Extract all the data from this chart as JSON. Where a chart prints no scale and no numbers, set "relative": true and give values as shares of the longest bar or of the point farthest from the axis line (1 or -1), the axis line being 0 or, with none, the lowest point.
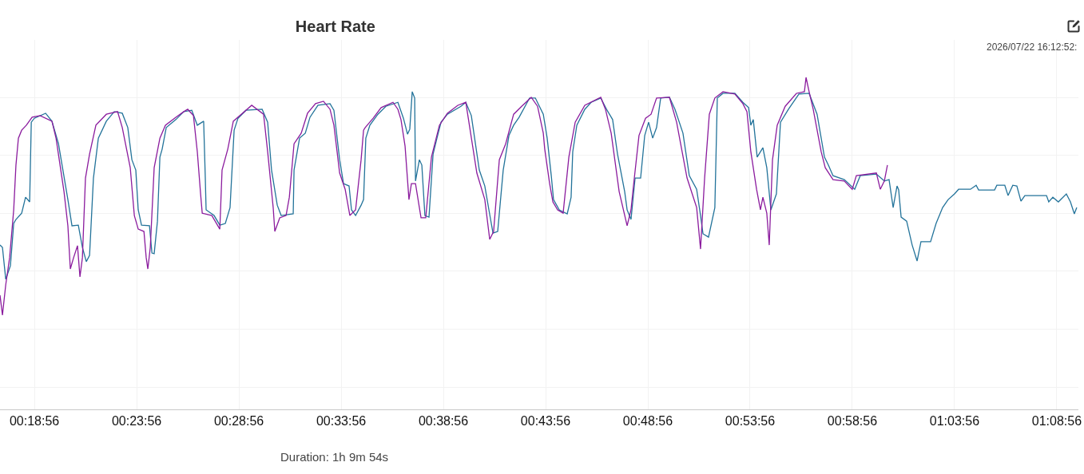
{
  "chart_data": {
    "type": "line",
    "title": "Heart Rate",
    "xlabel": "Duration: 1h 9m 54s",
    "annotations": [
      "2026/07/22 16:12:52:"
    ],
    "relative": true,
    "grid": true,
    "xlim": [
      17.25,
      69.99
    ],
    "xticks": [
      {
        "value": 18.933,
        "label": "00:18:56"
      },
      {
        "value": 23.933,
        "label": "00:23:56"
      },
      {
        "value": 28.933,
        "label": "00:28:56"
      },
      {
        "value": 33.933,
        "label": "00:33:56"
      },
      {
        "value": 38.933,
        "label": "00:38:56"
      },
      {
        "value": 43.933,
        "label": "00:43:56"
      },
      {
        "value": 48.933,
        "label": "00:48:56"
      },
      {
        "value": 53.933,
        "label": "00:53:56"
      },
      {
        "value": 58.933,
        "label": "00:58:56"
      },
      {
        "value": 63.933,
        "label": "01:03:56"
      },
      {
        "value": 68.933,
        "label": "01:08:56"
      }
    ],
    "series": [
      {
        "color": "#23739a",
        "x": [
          17.25,
          17.37,
          17.53,
          17.76,
          17.92,
          18.03,
          18.31,
          18.5,
          18.7,
          18.78,
          18.93,
          19.48,
          19.79,
          20.11,
          20.57,
          20.77,
          21.08,
          21.28,
          21.47,
          21.63,
          21.82,
          22.06,
          22.45,
          22.84,
          23.23,
          23.5,
          23.7,
          23.89,
          24.01,
          24.17,
          24.56,
          24.68,
          24.79,
          24.95,
          25.07,
          25.18,
          25.38,
          25.85,
          26.24,
          26.63,
          26.9,
          27.21,
          27.29,
          27.33,
          27.72,
          28.0,
          28.27,
          28.5,
          28.7,
          28.89,
          29.28,
          30.07,
          30.34,
          30.53,
          30.81,
          31.0,
          31.59,
          31.63,
          31.9,
          32.18,
          32.41,
          32.8,
          33.39,
          33.58,
          33.86,
          34.05,
          34.32,
          34.44,
          34.64,
          34.91,
          35.03,
          35.14,
          35.34,
          35.73,
          36.12,
          36.71,
          36.98,
          37.18,
          37.29,
          37.41,
          37.53,
          37.57,
          37.76,
          37.88,
          38.03,
          38.23,
          38.43,
          38.62,
          38.82,
          39.13,
          39.79,
          40.03,
          40.3,
          40.69,
          40.96,
          41.16,
          41.36,
          41.59,
          41.86,
          42.14,
          42.37,
          42.64,
          43.15,
          43.43,
          43.82,
          44.01,
          44.21,
          44.32,
          44.6,
          44.99,
          45.18,
          45.26,
          45.46,
          45.85,
          46.16,
          46.63,
          46.94,
          47.21,
          47.45,
          47.8,
          47.92,
          48.11,
          48.31,
          48.58,
          48.78,
          48.97,
          49.17,
          49.36,
          49.56,
          49.99,
          50.26,
          50.65,
          50.96,
          51.32,
          51.51,
          51.63,
          51.9,
          52.21,
          52.33,
          52.61,
          53.19,
          53.58,
          53.86,
          53.97,
          54.09,
          54.28,
          54.56,
          54.75,
          54.95,
          55.22,
          55.42,
          55.81,
          56.32,
          56.82,
          57.21,
          57.57,
          57.76,
          57.99,
          58.54,
          59.05,
          59.32,
          60.11,
          60.5,
          60.73,
          60.93,
          61.12,
          61.2,
          61.32,
          61.59,
          61.86,
          62.1,
          62.29,
          62.76,
          63.03,
          63.35,
          63.62,
          63.93,
          64.13,
          64.71,
          64.99,
          65.11,
          65.89,
          66.0,
          66.39,
          66.55,
          66.78,
          66.98,
          67.18,
          67.37,
          68.43,
          68.54,
          68.74,
          69.01,
          69.4,
          69.6,
          69.79,
          69.91
        ],
        "values": [
          0.495,
          0.488,
          0.392,
          0.433,
          0.56,
          0.572,
          0.591,
          0.639,
          0.625,
          0.865,
          0.877,
          0.892,
          0.868,
          0.8,
          0.632,
          0.553,
          0.555,
          0.488,
          0.445,
          0.464,
          0.697,
          0.817,
          0.868,
          0.897,
          0.892,
          0.849,
          0.752,
          0.721,
          0.601,
          0.555,
          0.553,
          0.471,
          0.469,
          0.567,
          0.76,
          0.784,
          0.849,
          0.873,
          0.897,
          0.901,
          0.856,
          0.868,
          0.697,
          0.601,
          0.584,
          0.555,
          0.56,
          0.608,
          0.841,
          0.877,
          0.901,
          0.904,
          0.865,
          0.721,
          0.615,
          0.584,
          0.589,
          0.721,
          0.817,
          0.832,
          0.88,
          0.916,
          0.921,
          0.901,
          0.752,
          0.68,
          0.673,
          0.601,
          0.584,
          0.615,
          0.632,
          0.817,
          0.856,
          0.889,
          0.913,
          0.925,
          0.877,
          0.829,
          0.844,
          0.957,
          0.938,
          0.688,
          0.752,
          0.736,
          0.584,
          0.579,
          0.769,
          0.817,
          0.865,
          0.889,
          0.913,
          0.925,
          0.885,
          0.721,
          0.673,
          0.601,
          0.531,
          0.536,
          0.721,
          0.825,
          0.856,
          0.88,
          0.938,
          0.938,
          0.889,
          0.817,
          0.704,
          0.632,
          0.601,
          0.589,
          0.639,
          0.776,
          0.856,
          0.904,
          0.925,
          0.938,
          0.901,
          0.873,
          0.769,
          0.656,
          0.601,
          0.572,
          0.697,
          0.697,
          0.825,
          0.865,
          0.817,
          0.849,
          0.938,
          0.94,
          0.904,
          0.832,
          0.704,
          0.663,
          0.584,
          0.529,
          0.519,
          0.608,
          0.938,
          0.952,
          0.952,
          0.925,
          0.909,
          0.856,
          0.873,
          0.76,
          0.788,
          0.728,
          0.601,
          0.649,
          0.865,
          0.904,
          0.95,
          0.952,
          0.889,
          0.76,
          0.736,
          0.704,
          0.692,
          0.663,
          0.704,
          0.709,
          0.688,
          0.692,
          0.608,
          0.673,
          0.661,
          0.579,
          0.567,
          0.495,
          0.447,
          0.505,
          0.505,
          0.56,
          0.608,
          0.632,
          0.649,
          0.663,
          0.663,
          0.675,
          0.661,
          0.661,
          0.675,
          0.675,
          0.644,
          0.675,
          0.673,
          0.627,
          0.644,
          0.644,
          0.625,
          0.639,
          0.625,
          0.649,
          0.625,
          0.589,
          0.608
        ]
      },
      {
        "color": "#8b1c9e",
        "x": [
          17.25,
          17.37,
          17.53,
          17.72,
          17.92,
          18.03,
          18.15,
          18.31,
          18.54,
          18.82,
          19.21,
          19.79,
          19.99,
          20.38,
          20.57,
          20.69,
          20.85,
          21.04,
          21.16,
          21.28,
          21.43,
          21.63,
          21.94,
          22.45,
          23.0,
          23.23,
          23.62,
          23.82,
          24.01,
          24.29,
          24.4,
          24.48,
          24.6,
          24.79,
          25.07,
          25.34,
          25.85,
          26.24,
          26.43,
          26.71,
          26.9,
          27.06,
          27.14,
          27.61,
          28.0,
          28.11,
          28.39,
          28.66,
          29.05,
          29.56,
          30.14,
          30.34,
          30.61,
          30.69,
          30.93,
          31.24,
          31.4,
          31.63,
          31.98,
          32.29,
          32.68,
          33.07,
          33.39,
          33.58,
          33.86,
          34.13,
          34.36,
          34.64,
          34.91,
          35.03,
          35.11,
          35.5,
          35.89,
          36.47,
          36.71,
          36.86,
          37.06,
          37.25,
          37.37,
          37.57,
          37.84,
          38.07,
          38.35,
          38.74,
          39.13,
          39.64,
          40.03,
          40.57,
          40.96,
          41.2,
          41.39,
          41.67,
          41.98,
          42.37,
          42.76,
          43.23,
          43.54,
          43.82,
          43.89,
          44.13,
          44.29,
          44.52,
          44.79,
          45.07,
          45.38,
          45.85,
          46.63,
          46.86,
          47.14,
          47.53,
          47.92,
          48.11,
          48.23,
          48.5,
          48.82,
          49.09,
          49.36,
          49.99,
          50.34,
          50.85,
          51.32,
          51.51,
          51.71,
          51.94,
          52.21,
          52.61,
          53.19,
          53.58,
          53.78,
          53.97,
          54.25,
          54.44,
          54.56,
          54.75,
          54.87,
          55.03,
          55.26,
          55.65,
          56.2,
          56.59,
          56.67,
          56.82,
          57.02,
          57.41,
          57.61,
          57.99,
          58.54,
          58.93,
          59.13,
          60.11,
          60.3,
          60.5,
          60.65
        ],
        "values": [
          0.344,
          0.284,
          0.375,
          0.457,
          0.601,
          0.736,
          0.817,
          0.841,
          0.856,
          0.88,
          0.885,
          0.868,
          0.817,
          0.656,
          0.553,
          0.423,
          0.457,
          0.493,
          0.399,
          0.457,
          0.697,
          0.769,
          0.856,
          0.889,
          0.897,
          0.849,
          0.728,
          0.584,
          0.543,
          0.536,
          0.457,
          0.423,
          0.488,
          0.728,
          0.817,
          0.856,
          0.88,
          0.897,
          0.904,
          0.885,
          0.776,
          0.649,
          0.591,
          0.584,
          0.543,
          0.721,
          0.784,
          0.868,
          0.889,
          0.916,
          0.889,
          0.776,
          0.608,
          0.536,
          0.577,
          0.584,
          0.639,
          0.8,
          0.832,
          0.892,
          0.921,
          0.928,
          0.904,
          0.856,
          0.712,
          0.663,
          0.584,
          0.601,
          0.752,
          0.841,
          0.849,
          0.877,
          0.909,
          0.925,
          0.904,
          0.873,
          0.793,
          0.632,
          0.68,
          0.68,
          0.577,
          0.577,
          0.76,
          0.856,
          0.892,
          0.916,
          0.925,
          0.712,
          0.632,
          0.512,
          0.536,
          0.752,
          0.8,
          0.889,
          0.913,
          0.94,
          0.913,
          0.832,
          0.784,
          0.68,
          0.625,
          0.601,
          0.591,
          0.76,
          0.865,
          0.916,
          0.94,
          0.904,
          0.832,
          0.656,
          0.553,
          0.601,
          0.673,
          0.825,
          0.877,
          0.889,
          0.938,
          0.94,
          0.865,
          0.697,
          0.608,
          0.483,
          0.697,
          0.889,
          0.938,
          0.957,
          0.95,
          0.921,
          0.897,
          0.776,
          0.663,
          0.601,
          0.639,
          0.591,
          0.495,
          0.752,
          0.856,
          0.913,
          0.952,
          0.957,
          1.0,
          0.957,
          0.904,
          0.776,
          0.728,
          0.692,
          0.688,
          0.663,
          0.704,
          0.712,
          0.663,
          0.688,
          0.736
        ]
      }
    ]
  }
}
